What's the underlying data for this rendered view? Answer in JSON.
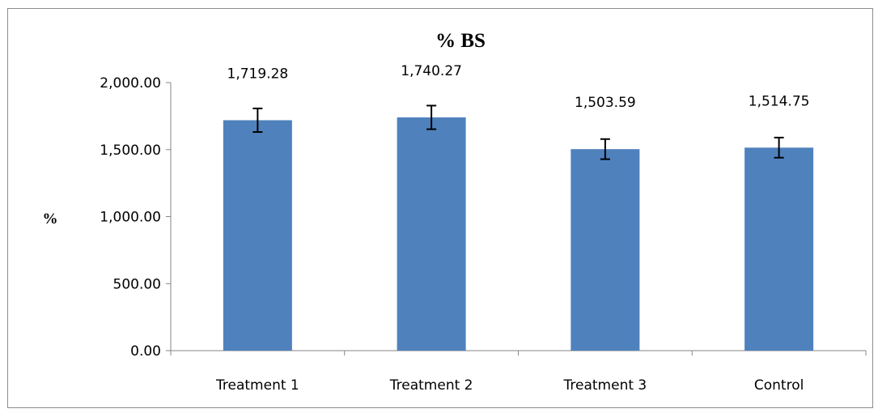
{
  "chart_data": {
    "type": "bar",
    "title": "% BS",
    "xlabel": "",
    "ylabel": "%",
    "ylim": [
      0,
      2000
    ],
    "yticks": [
      0,
      500,
      1000,
      1500,
      2000
    ],
    "ytick_labels": [
      "0.00",
      "500.00",
      "1,000.00",
      "1,500.00",
      "2,000.00"
    ],
    "categories": [
      "Treatment 1",
      "Treatment 2",
      "Treatment 3",
      "Control"
    ],
    "values": [
      1719.28,
      1740.27,
      1503.59,
      1514.75
    ],
    "data_labels": [
      "1,719.28",
      "1,740.27",
      "1,503.59",
      "1,514.75"
    ],
    "error": [
      88,
      88,
      75,
      75
    ],
    "grid": false,
    "legend": "none",
    "bar_color": "#4f81bd",
    "axis_color": "#868686",
    "error_bar_color": "#000000"
  }
}
